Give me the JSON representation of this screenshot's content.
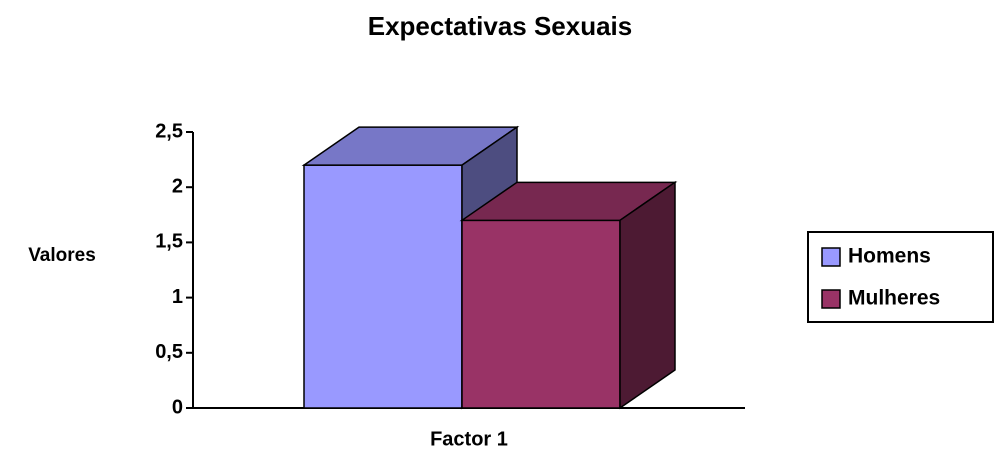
{
  "chart_data": {
    "type": "bar3d",
    "title": "Expectativas Sexuais",
    "y_label": "Valores",
    "categories": [
      "Factor 1"
    ],
    "series": [
      {
        "name": "Homens",
        "color": "#9999ff",
        "values": [
          2.2
        ]
      },
      {
        "name": "Mulheres",
        "color": "#993366",
        "values": [
          1.7
        ]
      }
    ],
    "ylim": [
      0,
      2.5
    ],
    "yticks": [
      0,
      {
        "value": 0.5,
        "label": "0,5"
      },
      1,
      {
        "value": 1.5,
        "label": "1,5"
      },
      2,
      {
        "value": 2.5,
        "label": "2,5"
      }
    ],
    "legend": "right"
  }
}
